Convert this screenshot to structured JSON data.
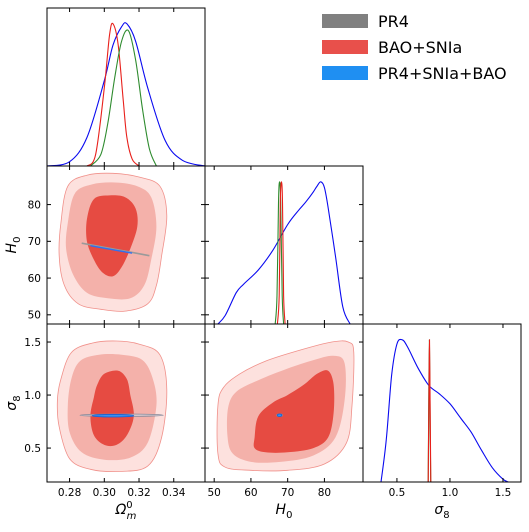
{
  "chart_data": {
    "type": "triangle-corner-plot",
    "parameters": [
      {
        "key": "omega_m",
        "label": "Ω",
        "label_sup": "0",
        "label_sub": "m",
        "range": [
          0.267,
          0.358
        ],
        "ticks": [
          "0.28",
          "0.30",
          "0.32",
          "0.34"
        ],
        "tick_values": [
          0.28,
          0.3,
          0.32,
          0.34
        ]
      },
      {
        "key": "H0",
        "label": "H",
        "label_sub": "0",
        "range": [
          47.5,
          90.5
        ],
        "ticks": [
          "50",
          "60",
          "70",
          "80"
        ],
        "tick_values": [
          50,
          60,
          70,
          80
        ],
        "y_ticks": [
          "50",
          "60",
          "70",
          "80"
        ]
      },
      {
        "key": "sigma8",
        "label": "σ",
        "label_sub": "8",
        "range": [
          0.18,
          1.67
        ],
        "ticks": [
          "0.5",
          "1.0",
          "1.5"
        ],
        "tick_values": [
          0.5,
          1.0,
          1.5
        ],
        "y_ticks": [
          "0.5",
          "1.0",
          "1.5"
        ]
      }
    ],
    "legend": {
      "placement": "top-right",
      "entries": [
        {
          "label": "PR4",
          "color": "#808080"
        },
        {
          "label": "BAO+SNIa",
          "color": "#e8504b"
        },
        {
          "label": "PR4+SNIa+BAO",
          "color": "#1f8ff2"
        }
      ]
    },
    "series_colors": {
      "PR4": "#2e8b2e",
      "BAO+SNIa": "#e8201b",
      "PR4+SNIa+BAO": "#0a0af0"
    },
    "contour_fills": {
      "outer": "#fde1de",
      "mid": "#f4b1aa",
      "inner": "#e64b42"
    },
    "marginals": {
      "omega_m": [
        {
          "series": "PR4+SNIa+BAO",
          "x": [
            0.267,
            0.28,
            0.29,
            0.3,
            0.305,
            0.31,
            0.313,
            0.318,
            0.325,
            0.335,
            0.345,
            0.358
          ],
          "y": [
            0.0,
            0.03,
            0.2,
            0.6,
            0.85,
            0.98,
            1.0,
            0.88,
            0.55,
            0.18,
            0.04,
            0.0
          ]
        },
        {
          "series": "BAO+SNIa",
          "x": [
            0.29,
            0.295,
            0.3,
            0.303,
            0.305,
            0.308,
            0.311,
            0.313,
            0.316,
            0.32
          ],
          "y": [
            0.0,
            0.08,
            0.55,
            0.92,
            1.0,
            0.85,
            0.45,
            0.2,
            0.05,
            0.0
          ]
        },
        {
          "series": "PR4",
          "x": [
            0.292,
            0.298,
            0.302,
            0.306,
            0.31,
            0.314,
            0.318,
            0.322,
            0.326,
            0.33
          ],
          "y": [
            0.0,
            0.08,
            0.3,
            0.62,
            0.88,
            0.95,
            0.75,
            0.4,
            0.12,
            0.0
          ]
        }
      ],
      "H0": [
        {
          "series": "PR4+SNIa+BAO",
          "x": [
            51,
            53,
            56,
            58,
            62,
            66,
            70,
            73,
            75,
            77,
            78,
            79,
            80,
            81,
            83,
            85,
            87
          ],
          "y": [
            0.0,
            0.06,
            0.22,
            0.28,
            0.38,
            0.52,
            0.7,
            0.8,
            0.86,
            0.93,
            0.97,
            1.0,
            0.96,
            0.82,
            0.48,
            0.12,
            0.0
          ]
        },
        {
          "series": "PR4",
          "x": [
            66.6,
            67.1,
            67.5,
            67.8,
            68.1,
            68.5,
            68.9
          ],
          "y": [
            0.0,
            0.2,
            0.85,
            1.0,
            0.85,
            0.2,
            0.0
          ]
        },
        {
          "series": "BAO+SNIa",
          "x": [
            67.2,
            67.7,
            68.0,
            68.3,
            68.6,
            68.9,
            69.3
          ],
          "y": [
            0.0,
            0.2,
            0.85,
            1.0,
            0.85,
            0.2,
            0.0
          ]
        }
      ],
      "sigma8": [
        {
          "series": "PR4+SNIa+BAO",
          "x": [
            0.35,
            0.4,
            0.45,
            0.5,
            0.55,
            0.6,
            0.7,
            0.8,
            0.9,
            1.0,
            1.1,
            1.2,
            1.3,
            1.4,
            1.5,
            1.55
          ],
          "y": [
            0.0,
            0.3,
            0.75,
            0.97,
            1.0,
            0.95,
            0.8,
            0.68,
            0.62,
            0.55,
            0.45,
            0.35,
            0.22,
            0.1,
            0.02,
            0.0
          ]
        },
        {
          "series": "PR4",
          "x": [
            0.795,
            0.8,
            0.806,
            0.812,
            0.818
          ],
          "y": [
            0.0,
            0.55,
            1.0,
            0.55,
            0.0
          ]
        },
        {
          "series": "BAO+SNIa",
          "x": [
            0.795,
            0.801,
            0.807,
            0.813,
            0.819
          ],
          "y": [
            0.0,
            0.55,
            1.0,
            0.55,
            0.0
          ]
        }
      ]
    },
    "contours_2d": {
      "H0_vs_omega_m": {
        "outer": [
          [
            0.275,
            75
          ],
          [
            0.279,
            85
          ],
          [
            0.29,
            88
          ],
          [
            0.305,
            88.5
          ],
          [
            0.32,
            87.5
          ],
          [
            0.332,
            85
          ],
          [
            0.336,
            77
          ],
          [
            0.333,
            66
          ],
          [
            0.33,
            58
          ],
          [
            0.325,
            53
          ],
          [
            0.312,
            51
          ],
          [
            0.298,
            51.5
          ],
          [
            0.285,
            53
          ],
          [
            0.277,
            58
          ],
          [
            0.274,
            66
          ]
        ],
        "mid": [
          [
            0.279,
            75
          ],
          [
            0.283,
            83
          ],
          [
            0.293,
            85.5
          ],
          [
            0.306,
            86
          ],
          [
            0.319,
            85
          ],
          [
            0.327,
            82
          ],
          [
            0.33,
            74
          ],
          [
            0.327,
            65
          ],
          [
            0.323,
            58
          ],
          [
            0.315,
            54.5
          ],
          [
            0.302,
            54.5
          ],
          [
            0.29,
            56
          ],
          [
            0.282,
            61
          ],
          [
            0.278,
            68
          ]
        ],
        "inner": [
          [
            0.29,
            76
          ],
          [
            0.294,
            81.5
          ],
          [
            0.303,
            82.5
          ],
          [
            0.312,
            82
          ],
          [
            0.318,
            79
          ],
          [
            0.319,
            74
          ],
          [
            0.315,
            68
          ],
          [
            0.31,
            63
          ],
          [
            0.305,
            60.5
          ],
          [
            0.299,
            61.5
          ],
          [
            0.294,
            65
          ],
          [
            0.29,
            70
          ]
        ],
        "overlays": [
          {
            "series": "PR4",
            "points": [
              [
                0.287,
                69.5
              ],
              [
                0.31,
                67.5
              ],
              [
                0.326,
                66.1
              ]
            ]
          },
          {
            "series": "PR4+SNIa+BAO",
            "points": [
              [
                0.292,
                68.8
              ],
              [
                0.306,
                67.6
              ],
              [
                0.316,
                66.8
              ]
            ]
          }
        ]
      },
      "sigma8_vs_omega_m": {
        "outer": [
          [
            0.275,
            1.15
          ],
          [
            0.281,
            1.4
          ],
          [
            0.293,
            1.49
          ],
          [
            0.307,
            1.51
          ],
          [
            0.32,
            1.48
          ],
          [
            0.332,
            1.38
          ],
          [
            0.336,
            1.05
          ],
          [
            0.333,
            0.6
          ],
          [
            0.325,
            0.33
          ],
          [
            0.309,
            0.28
          ],
          [
            0.292,
            0.3
          ],
          [
            0.28,
            0.4
          ],
          [
            0.274,
            0.7
          ],
          [
            0.273,
            0.95
          ]
        ],
        "mid": [
          [
            0.281,
            1.15
          ],
          [
            0.286,
            1.32
          ],
          [
            0.297,
            1.38
          ],
          [
            0.31,
            1.38
          ],
          [
            0.322,
            1.33
          ],
          [
            0.328,
            1.15
          ],
          [
            0.33,
            0.9
          ],
          [
            0.325,
            0.55
          ],
          [
            0.315,
            0.41
          ],
          [
            0.3,
            0.39
          ],
          [
            0.287,
            0.46
          ],
          [
            0.28,
            0.65
          ],
          [
            0.279,
            0.9
          ]
        ],
        "inner": [
          [
            0.296,
            1.1
          ],
          [
            0.3,
            1.2
          ],
          [
            0.308,
            1.23
          ],
          [
            0.313,
            1.15
          ],
          [
            0.315,
            1.0
          ],
          [
            0.317,
            0.8
          ],
          [
            0.313,
            0.62
          ],
          [
            0.307,
            0.53
          ],
          [
            0.3,
            0.53
          ],
          [
            0.294,
            0.62
          ],
          [
            0.292,
            0.8
          ],
          [
            0.294,
            0.98
          ]
        ],
        "overlays": [
          {
            "series": "PR4",
            "center": [
              0.31,
              0.81
            ],
            "rx": 0.024,
            "ry": 0.01
          },
          {
            "series": "PR4+SNIa+BAO",
            "center": [
              0.305,
              0.805
            ],
            "rx": 0.012,
            "ry": 0.012
          }
        ]
      },
      "sigma8_vs_H0": {
        "outer": [
          [
            51.0,
            0.9
          ],
          [
            52.5,
            1.07
          ],
          [
            57,
            1.2
          ],
          [
            64,
            1.32
          ],
          [
            73,
            1.42
          ],
          [
            82,
            1.5
          ],
          [
            86.5,
            1.5
          ],
          [
            88,
            1.4
          ],
          [
            87.5,
            0.9
          ],
          [
            86,
            0.55
          ],
          [
            80,
            0.35
          ],
          [
            70,
            0.29
          ],
          [
            60,
            0.29
          ],
          [
            53,
            0.32
          ],
          [
            51,
            0.45
          ]
        ],
        "mid": [
          [
            53.8,
            0.88
          ],
          [
            56,
            1.03
          ],
          [
            62,
            1.14
          ],
          [
            70,
            1.25
          ],
          [
            77,
            1.33
          ],
          [
            82.5,
            1.37
          ],
          [
            85.5,
            1.3
          ],
          [
            85.5,
            0.95
          ],
          [
            83,
            0.6
          ],
          [
            77,
            0.43
          ],
          [
            68,
            0.37
          ],
          [
            60,
            0.37
          ],
          [
            55,
            0.45
          ],
          [
            53.6,
            0.62
          ]
        ],
        "inner": [
          [
            61.0,
            0.6
          ],
          [
            62,
            0.8
          ],
          [
            66,
            0.93
          ],
          [
            70,
            1.0
          ],
          [
            74.5,
            1.1
          ],
          [
            78,
            1.2
          ],
          [
            81,
            1.23
          ],
          [
            82.5,
            1.1
          ],
          [
            82.5,
            0.83
          ],
          [
            81,
            0.6
          ],
          [
            77,
            0.5
          ],
          [
            70,
            0.46
          ],
          [
            64,
            0.46
          ],
          [
            61,
            0.5
          ]
        ],
        "overlays": [
          {
            "series": "PR4",
            "center": [
              67.8,
              0.81
            ],
            "rx": 0.8,
            "ry": 0.012
          },
          {
            "series": "PR4+SNIa+BAO",
            "center": [
              67.8,
              0.81
            ],
            "rx": 0.6,
            "ry": 0.01
          }
        ]
      }
    }
  }
}
